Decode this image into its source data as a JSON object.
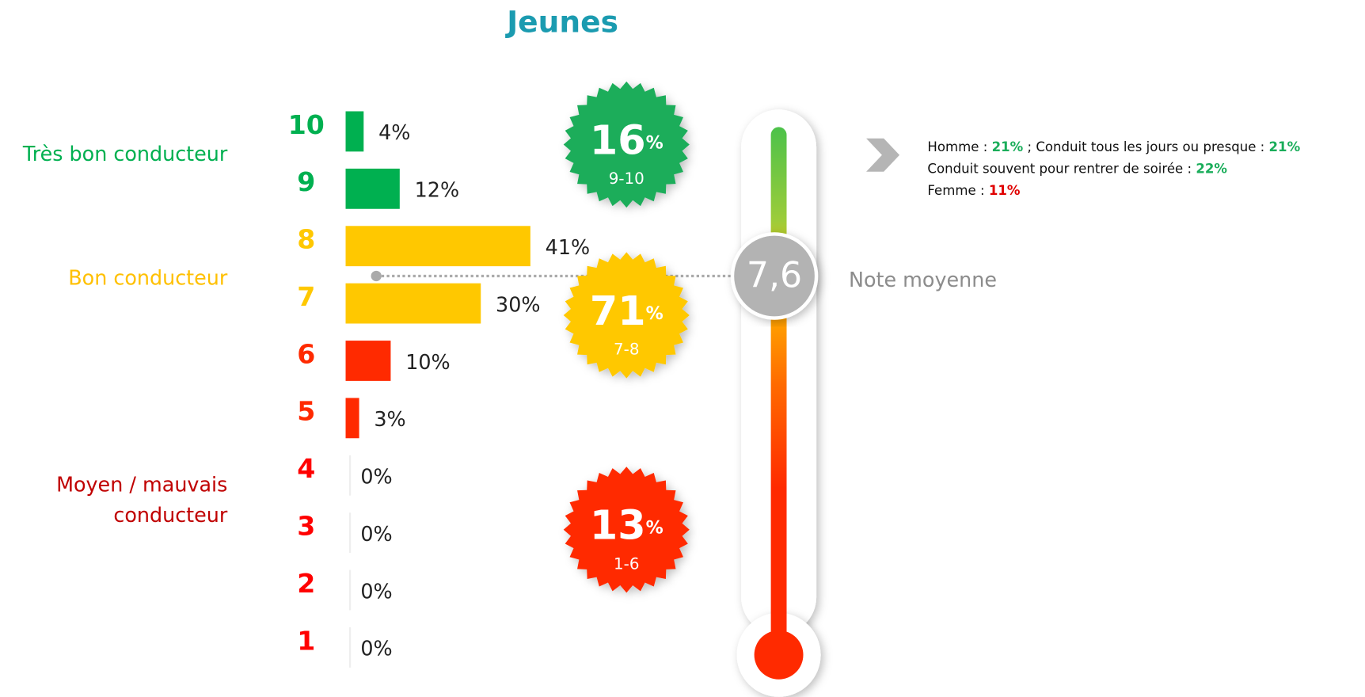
{
  "chart_data": {
    "type": "bar",
    "title": "Jeunes",
    "categories": [
      "10",
      "9",
      "8",
      "7",
      "6",
      "5",
      "4",
      "3",
      "2",
      "1"
    ],
    "values": [
      4,
      12,
      41,
      30,
      10,
      3,
      0,
      0,
      0,
      0
    ],
    "value_labels": [
      "4%",
      "12%",
      "41%",
      "30%",
      "10%",
      "3%",
      "0%",
      "0%",
      "0%",
      "0%"
    ],
    "colors": [
      "#00b050",
      "#00b050",
      "#ffc800",
      "#ffc800",
      "#ff2a00",
      "#ff2a00",
      "#ff0000",
      "#ff0000",
      "#ff0000",
      "#ff0000"
    ],
    "groups": [
      {
        "lines": [
          "Très bon conducteur"
        ],
        "color": "#00b050"
      },
      {
        "lines": [
          "Bon conducteur"
        ],
        "color": "#ffc000"
      },
      {
        "lines": [
          "Moyen / mauvais",
          "conducteur"
        ],
        "color": "#c00000"
      }
    ],
    "badges": [
      {
        "value": 16,
        "unit": "%",
        "range": "9-10",
        "color": "#1aad5a"
      },
      {
        "value": 71,
        "unit": "%",
        "range": "7-8",
        "color": "#ffc800"
      },
      {
        "value": 13,
        "unit": "%",
        "range": "1-6",
        "color": "#ff2a00"
      }
    ],
    "average": {
      "value": 7.6,
      "label": "7,6",
      "caption": "Note moyenne"
    },
    "notes": [
      [
        {
          "text": "Homme : "
        },
        {
          "text": "21%",
          "color": "#1aad5a"
        },
        {
          "text": " ; Conduit tous les jours ou presque : "
        },
        {
          "text": "21%",
          "color": "#1aad5a"
        }
      ],
      [
        {
          "text": "Conduit souvent pour rentrer de soirée : "
        },
        {
          "text": "22%",
          "color": "#1aad5a"
        }
      ],
      [
        {
          "text": "Femme : "
        },
        {
          "text": "11%",
          "color": "#e00000"
        }
      ]
    ]
  }
}
